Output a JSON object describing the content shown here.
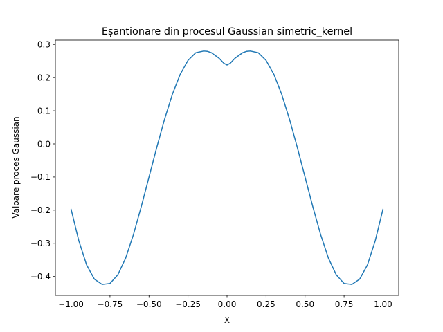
{
  "chart_data": {
    "type": "line",
    "title": "Eșantionare din procesul Gaussian simetric_kernel",
    "xlabel": "X",
    "ylabel": "Valoare proces Gaussian",
    "xlim": [
      -1.1,
      1.1
    ],
    "ylim": [
      -0.457,
      0.313
    ],
    "grid": false,
    "xticks": [
      -1.0,
      -0.75,
      -0.5,
      -0.25,
      0.0,
      0.25,
      0.5,
      0.75,
      1.0
    ],
    "xtick_labels": [
      "−1.00",
      "−0.75",
      "−0.50",
      "−0.25",
      "0.00",
      "0.25",
      "0.50",
      "0.75",
      "1.00"
    ],
    "yticks": [
      -0.4,
      -0.3,
      -0.2,
      -0.1,
      0.0,
      0.1,
      0.2,
      0.3
    ],
    "ytick_labels": [
      "−0.4",
      "−0.3",
      "−0.2",
      "−0.1",
      "0.0",
      "0.1",
      "0.2",
      "0.3"
    ],
    "series": [
      {
        "color": "#1f77b4",
        "x": [
          -1.0,
          -0.95,
          -0.9,
          -0.85,
          -0.8,
          -0.75,
          -0.7,
          -0.65,
          -0.6,
          -0.55,
          -0.5,
          -0.45,
          -0.4,
          -0.35,
          -0.3,
          -0.25,
          -0.2,
          -0.15,
          -0.125,
          -0.1,
          -0.05,
          -0.02,
          0.0,
          0.02,
          0.05,
          0.1,
          0.125,
          0.15,
          0.2,
          0.25,
          0.3,
          0.35,
          0.4,
          0.45,
          0.5,
          0.55,
          0.6,
          0.65,
          0.7,
          0.75,
          0.8,
          0.85,
          0.9,
          0.95,
          1.0
        ],
        "y": [
          -0.196,
          -0.292,
          -0.365,
          -0.408,
          -0.424,
          -0.421,
          -0.395,
          -0.345,
          -0.274,
          -0.19,
          -0.1,
          -0.01,
          0.075,
          0.15,
          0.21,
          0.252,
          0.275,
          0.28,
          0.279,
          0.275,
          0.258,
          0.243,
          0.238,
          0.243,
          0.258,
          0.275,
          0.279,
          0.28,
          0.275,
          0.252,
          0.21,
          0.15,
          0.075,
          -0.01,
          -0.1,
          -0.19,
          -0.274,
          -0.345,
          -0.395,
          -0.421,
          -0.424,
          -0.408,
          -0.365,
          -0.292,
          -0.196
        ]
      }
    ]
  }
}
